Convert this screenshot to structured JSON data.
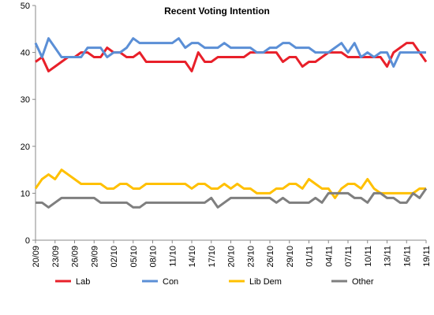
{
  "chart_data": {
    "type": "line",
    "title": "Recent Voting Intention",
    "categories": [
      "20/09",
      null,
      null,
      "23/09",
      null,
      null,
      "26/09",
      null,
      null,
      "29/09",
      null,
      null,
      "02/10",
      null,
      null,
      "05/10",
      null,
      null,
      "08/10",
      null,
      null,
      "11/10",
      null,
      null,
      "14/10",
      null,
      null,
      "17/10",
      null,
      null,
      "20/10",
      null,
      null,
      "23/10",
      null,
      null,
      "26/10",
      null,
      null,
      "29/10",
      null,
      null,
      "01/11",
      null,
      null,
      "04/11",
      null,
      null,
      "07/11",
      null,
      null,
      "10/11",
      null,
      null,
      "13/11",
      null,
      null,
      "16/11",
      null,
      null,
      "19/11"
    ],
    "series": [
      {
        "name": "Lab",
        "color": "#e8202a",
        "values": [
          38,
          39,
          36,
          37,
          38,
          39,
          39,
          40,
          40,
          39,
          39,
          41,
          40,
          40,
          39,
          39,
          40,
          38,
          38,
          38,
          38,
          38,
          38,
          38,
          36,
          40,
          38,
          38,
          39,
          39,
          39,
          39,
          39,
          40,
          40,
          40,
          40,
          40,
          38,
          39,
          39,
          37,
          38,
          38,
          39,
          40,
          40,
          40,
          39,
          39,
          39,
          39,
          39,
          39,
          37,
          40,
          41,
          42,
          42,
          40,
          38
        ]
      },
      {
        "name": "Con",
        "color": "#5b8fd6",
        "values": [
          42,
          39,
          43,
          41,
          39,
          39,
          39,
          39,
          41,
          41,
          41,
          39,
          40,
          40,
          41,
          43,
          42,
          42,
          42,
          42,
          42,
          42,
          43,
          41,
          42,
          42,
          41,
          41,
          41,
          42,
          41,
          41,
          41,
          41,
          40,
          40,
          41,
          41,
          42,
          42,
          41,
          41,
          41,
          40,
          40,
          40,
          41,
          42,
          40,
          42,
          39,
          40,
          39,
          40,
          40,
          37,
          40,
          40,
          40,
          40,
          40
        ]
      },
      {
        "name": "Lib Dem",
        "color": "#ffc000",
        "values": [
          11,
          13,
          14,
          13,
          15,
          14,
          13,
          12,
          12,
          12,
          12,
          11,
          11,
          12,
          12,
          11,
          11,
          12,
          12,
          12,
          12,
          12,
          12,
          12,
          11,
          12,
          12,
          11,
          11,
          12,
          11,
          12,
          11,
          11,
          10,
          10,
          10,
          11,
          11,
          12,
          12,
          11,
          13,
          12,
          11,
          11,
          9,
          11,
          12,
          12,
          11,
          13,
          11,
          10,
          10,
          10,
          10,
          10,
          10,
          11,
          11
        ]
      },
      {
        "name": "Other",
        "color": "#7f7f7f",
        "values": [
          8,
          8,
          7,
          8,
          9,
          9,
          9,
          9,
          9,
          9,
          8,
          8,
          8,
          8,
          8,
          7,
          7,
          8,
          8,
          8,
          8,
          8,
          8,
          8,
          8,
          8,
          8,
          9,
          7,
          8,
          9,
          9,
          9,
          9,
          9,
          9,
          9,
          8,
          9,
          8,
          8,
          8,
          8,
          9,
          8,
          10,
          10,
          10,
          10,
          9,
          9,
          8,
          10,
          10,
          9,
          9,
          8,
          8,
          10,
          9,
          11
        ]
      }
    ],
    "ylim": [
      0,
      50
    ],
    "yticks": [
      0,
      10,
      20,
      30,
      40,
      50
    ],
    "grid": false,
    "legend": "bottom"
  }
}
